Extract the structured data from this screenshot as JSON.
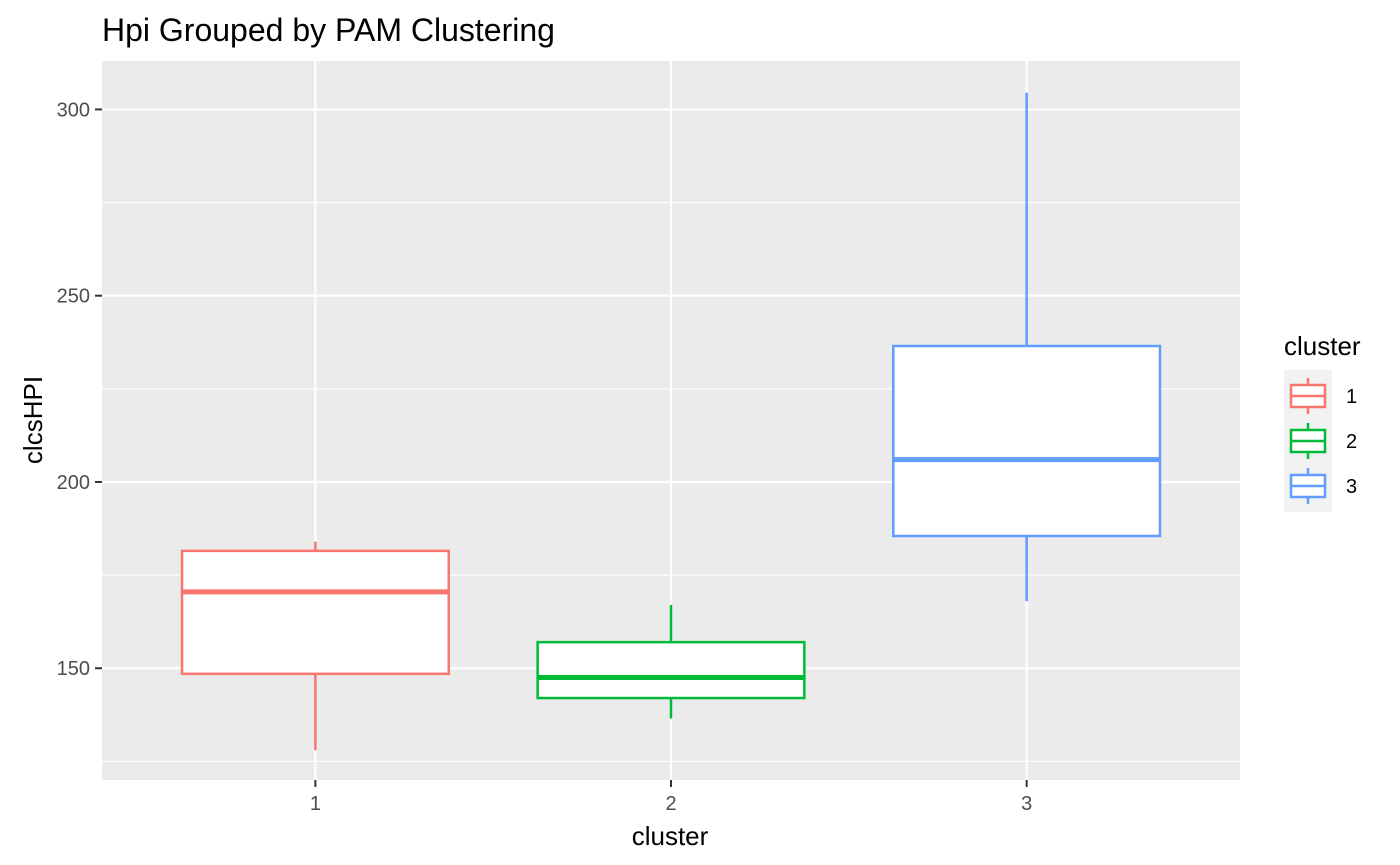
{
  "chart_data": {
    "type": "boxplot",
    "title": "Hpi Grouped by PAM Clustering",
    "xlabel": "cluster",
    "ylabel": "clcsHPI",
    "categories": [
      "1",
      "2",
      "3"
    ],
    "ylim": [
      120,
      313
    ],
    "y_ticks": [
      150,
      200,
      250,
      300
    ],
    "grid": true,
    "legend": {
      "title": "cluster",
      "position": "right",
      "entries": [
        "1",
        "2",
        "3"
      ]
    },
    "series": [
      {
        "name": "1",
        "color": "#F8766D",
        "min": 128,
        "q1": 148.5,
        "median": 170.5,
        "q3": 181.5,
        "max": 184
      },
      {
        "name": "2",
        "color": "#00BA38",
        "min": 136.5,
        "q1": 142,
        "median": 147.5,
        "q3": 157,
        "max": 167
      },
      {
        "name": "3",
        "color": "#619CFF",
        "min": 168,
        "q1": 185.5,
        "median": 206,
        "q3": 236.5,
        "max": 304.5
      }
    ]
  }
}
